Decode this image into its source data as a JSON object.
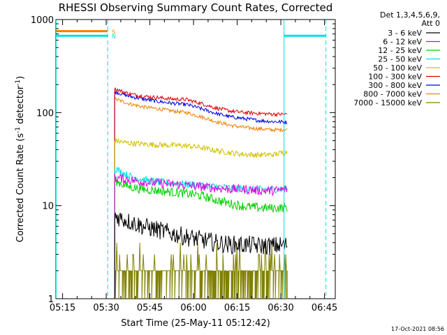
{
  "chart_data": {
    "type": "line",
    "title": "RHESSI Observing Summary Count Rates, Corrected",
    "xlabel": "Start Time (25-May-11 05:12:42)",
    "ylabel_main": "Corrected Count Rate (s",
    "ylabel_sup1": "-1",
    "ylabel_mid": " detector",
    "ylabel_sup2": "-1",
    "ylabel_end": ")",
    "y_scale": "log",
    "ylim": [
      1,
      1000
    ],
    "y_ticks": [
      {
        "value": 1,
        "label": "1"
      },
      {
        "value": 10,
        "label": "10"
      },
      {
        "value": 100,
        "label": "100"
      },
      {
        "value": 1000,
        "label": "1000"
      }
    ],
    "xlim_minutes": [
      0,
      96
    ],
    "x_ticks": [
      {
        "minute": 2.3,
        "label": "05:15"
      },
      {
        "minute": 17.3,
        "label": "05:30"
      },
      {
        "minute": 32.3,
        "label": "05:45"
      },
      {
        "minute": 47.3,
        "label": "06:00"
      },
      {
        "minute": 62.3,
        "label": "06:15"
      },
      {
        "minute": 77.3,
        "label": "06:30"
      },
      {
        "minute": 92.3,
        "label": "06:45"
      }
    ],
    "data_start_minute": 20.2,
    "data_end_minute": 79.6,
    "series": [
      {
        "name": "3 - 6 keV",
        "color": "#000000",
        "points": [
          [
            20.3,
            7.8
          ],
          [
            25,
            6.8
          ],
          [
            30,
            6.0
          ],
          [
            35,
            5.5
          ],
          [
            40,
            5.0
          ],
          [
            45,
            4.6
          ],
          [
            50,
            4.3
          ],
          [
            55,
            4.0
          ],
          [
            60,
            3.8
          ],
          [
            65,
            3.8
          ],
          [
            70,
            3.7
          ],
          [
            75,
            3.7
          ],
          [
            79.5,
            3.8
          ]
        ],
        "noise": 0.1
      },
      {
        "name": "6 - 12 keV",
        "color": "#e000e0",
        "points": [
          [
            20.3,
            20
          ],
          [
            25,
            19
          ],
          [
            30,
            18
          ],
          [
            35,
            17.5
          ],
          [
            40,
            17
          ],
          [
            45,
            16.5
          ],
          [
            50,
            16
          ],
          [
            55,
            15.5
          ],
          [
            60,
            15
          ],
          [
            65,
            15
          ],
          [
            70,
            14.5
          ],
          [
            75,
            14.5
          ],
          [
            79.5,
            15
          ]
        ],
        "noise": 0.05
      },
      {
        "name": "12 - 25 keV",
        "color": "#00d000",
        "points": [
          [
            20.3,
            18.5
          ],
          [
            25,
            16
          ],
          [
            30,
            15
          ],
          [
            35,
            14.5
          ],
          [
            40,
            14
          ],
          [
            45,
            13.5
          ],
          [
            50,
            12.8
          ],
          [
            55,
            11.5
          ],
          [
            60,
            10.5
          ],
          [
            65,
            9.8
          ],
          [
            70,
            9.5
          ],
          [
            75,
            9.4
          ],
          [
            79.5,
            9.6
          ]
        ],
        "noise": 0.05
      },
      {
        "name": "25 - 50 keV",
        "color": "#00e0e0",
        "points": [
          [
            20.3,
            25
          ],
          [
            25,
            21
          ],
          [
            30,
            19
          ],
          [
            35,
            18
          ],
          [
            40,
            17.5
          ],
          [
            45,
            17
          ],
          [
            50,
            16.5
          ],
          [
            55,
            16
          ],
          [
            60,
            15.5
          ],
          [
            65,
            15
          ],
          [
            70,
            15
          ],
          [
            75,
            15
          ],
          [
            79.5,
            15.5
          ]
        ],
        "noise": 0.04
      },
      {
        "name": "50 - 100 keV",
        "color": "#d0c000",
        "points": [
          [
            20.3,
            50
          ],
          [
            25,
            47
          ],
          [
            30,
            46
          ],
          [
            35,
            45
          ],
          [
            40,
            44.5
          ],
          [
            45,
            44
          ],
          [
            50,
            42
          ],
          [
            55,
            39
          ],
          [
            60,
            37
          ],
          [
            65,
            35.5
          ],
          [
            70,
            35
          ],
          [
            75,
            35.5
          ],
          [
            79.5,
            38
          ]
        ],
        "noise": 0.03
      },
      {
        "name": "100 - 300 keV",
        "color": "#e00000",
        "points": [
          [
            20.3,
            180
          ],
          [
            25,
            160
          ],
          [
            30,
            150
          ],
          [
            35,
            145
          ],
          [
            40,
            140
          ],
          [
            45,
            138
          ],
          [
            50,
            125
          ],
          [
            55,
            112
          ],
          [
            60,
            104
          ],
          [
            65,
            100
          ],
          [
            70,
            98
          ],
          [
            75,
            96
          ],
          [
            79.5,
            96
          ]
        ],
        "noise": 0.02
      },
      {
        "name": "300 - 800 keV",
        "color": "#0000e0",
        "points": [
          [
            20.3,
            168
          ],
          [
            25,
            150
          ],
          [
            30,
            140
          ],
          [
            35,
            132
          ],
          [
            40,
            126
          ],
          [
            45,
            122
          ],
          [
            50,
            110
          ],
          [
            55,
            98
          ],
          [
            60,
            90
          ],
          [
            65,
            86
          ],
          [
            70,
            82
          ],
          [
            75,
            80
          ],
          [
            79.5,
            79
          ]
        ],
        "noise": 0.02
      },
      {
        "name": "800 - 7000 keV",
        "color": "#f08000",
        "points": [
          [
            20.3,
            140
          ],
          [
            25,
            125
          ],
          [
            30,
            115
          ],
          [
            35,
            110
          ],
          [
            40,
            104
          ],
          [
            45,
            100
          ],
          [
            50,
            90
          ],
          [
            55,
            80
          ],
          [
            60,
            73
          ],
          [
            65,
            69
          ],
          [
            70,
            67
          ],
          [
            75,
            65
          ],
          [
            79.5,
            66
          ]
        ],
        "noise": 0.02
      },
      {
        "name": "7000 - 15000 keV",
        "color": "#808000",
        "points": [
          [
            20.3,
            1.5
          ],
          [
            79.5,
            1.8
          ]
        ],
        "noise": 0.5
      }
    ],
    "flag_bars": [
      {
        "label": "S",
        "color": "#f08000",
        "level": 750,
        "segments": [
          [
            0,
            17.8
          ]
        ]
      },
      {
        "label": "N",
        "color": "#00e0e0",
        "level": 670,
        "segments": [
          [
            0,
            17.8
          ],
          [
            78.4,
            92.8
          ]
        ]
      }
    ],
    "markers": [
      {
        "minute": 0.1,
        "color": "#00e0e0",
        "dashed": false
      },
      {
        "minute": 17.8,
        "color": "#00e0e0",
        "dashed": true
      },
      {
        "minute": 78.4,
        "color": "#00e0e0",
        "dashed": false
      },
      {
        "minute": 92.8,
        "color": "#00e0e0",
        "dashed": true
      }
    ]
  },
  "legend": {
    "header_line1": "Det 1,3,4,5,6,9,",
    "header_line2": "Att 0",
    "items": [
      {
        "label": "3 - 6 keV",
        "color": "#000000"
      },
      {
        "label": "6 - 12 keV",
        "color": "#e000e0"
      },
      {
        "label": "12 - 25 keV",
        "color": "#00d000"
      },
      {
        "label": "25 - 50 keV",
        "color": "#00e0e0"
      },
      {
        "label": "50 - 100 keV",
        "color": "#d0c000"
      },
      {
        "label": "100 - 300 keV",
        "color": "#e00000"
      },
      {
        "label": "300 - 800 keV",
        "color": "#0000e0"
      },
      {
        "label": "800 - 7000 keV",
        "color": "#f08000"
      },
      {
        "label": "7000 - 15000 keV",
        "color": "#808000"
      }
    ]
  },
  "footer": {
    "timestamp": "17-Oct-2021 08:56"
  }
}
